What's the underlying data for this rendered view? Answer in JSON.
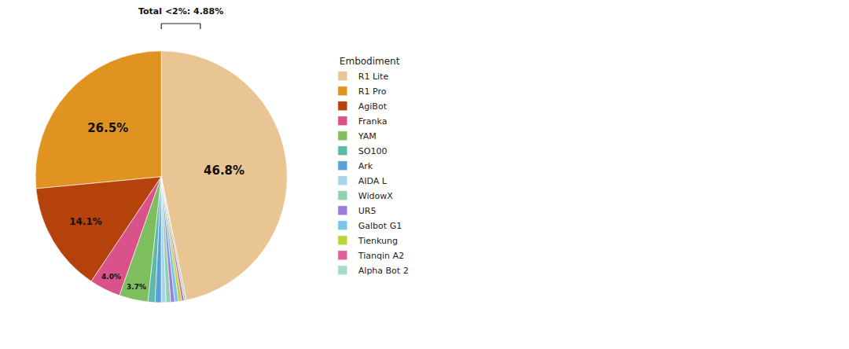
{
  "chart_data": {
    "type": "pie",
    "legend_title": "Embodiment",
    "categories": [
      "R1 Lite",
      "R1 Pro",
      "AgiBot",
      "Franka",
      "YAM",
      "SO100",
      "Ark",
      "AIDA L",
      "WidowX",
      "UR5",
      "Galbot G1",
      "Tienkung",
      "Tianqin A2",
      "Alpha Bot 2"
    ],
    "values": [
      46.8,
      26.5,
      14.1,
      4.0,
      3.7,
      0.9,
      0.8,
      0.6,
      0.6,
      0.5,
      0.5,
      0.4,
      0.3,
      0.28
    ],
    "value_labels": [
      "46.8%",
      "26.5%",
      "14.1%",
      "4.0%",
      "3.7%",
      null,
      null,
      null,
      null,
      null,
      null,
      null,
      null,
      null
    ],
    "colors": [
      "#e8c593",
      "#e09320",
      "#b5420a",
      "#d9538a",
      "#7fbe5f",
      "#5fb8a8",
      "#5a9fd8",
      "#a9d4ea",
      "#8fd1b0",
      "#9a7de0",
      "#7fc3e8",
      "#b8d63a",
      "#e0609a",
      "#a8dcc8"
    ],
    "data_labels": true,
    "legend": "right",
    "annotations": [
      {
        "text": "Total <2%: 4.88%"
      }
    ]
  }
}
